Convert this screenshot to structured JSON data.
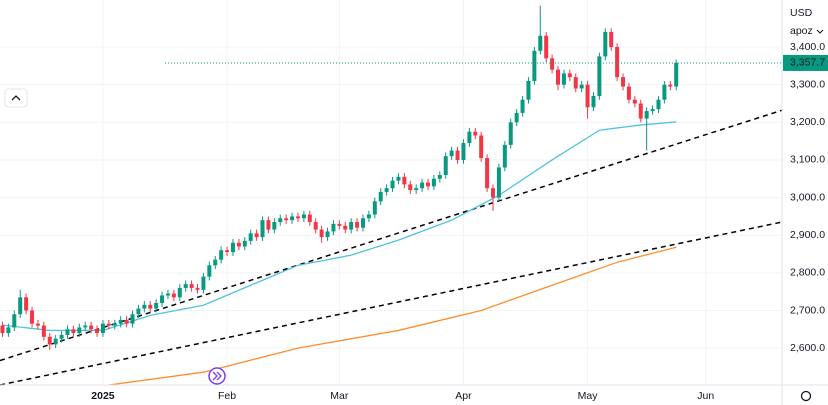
{
  "chart_data": {
    "type": "candlestick",
    "currency": "USD",
    "scale_label": "apoz",
    "xlim": [
      -0.42,
      131.9
    ],
    "ylim": [
      2502,
      3525
    ],
    "xticks": [
      {
        "value": 17,
        "label": "2025"
      },
      {
        "value": 38,
        "label": "Feb"
      },
      {
        "value": 57,
        "label": "Mar"
      },
      {
        "value": 78,
        "label": "Apr"
      },
      {
        "value": 99,
        "label": "May"
      },
      {
        "value": 119,
        "label": "Jun"
      }
    ],
    "yticks": [
      {
        "value": 3400,
        "label": "3,400.0"
      },
      {
        "value": 3300,
        "label": "3,300.0"
      },
      {
        "value": 3200,
        "label": "3,200.0"
      },
      {
        "value": 3100,
        "label": "3,100.0"
      },
      {
        "value": 3000,
        "label": "3,000.0"
      },
      {
        "value": 2900,
        "label": "2,900.0"
      },
      {
        "value": 2800,
        "label": "2,800.0"
      },
      {
        "value": 2700,
        "label": "2,700.0"
      },
      {
        "value": 2600,
        "label": "2,600.0"
      }
    ],
    "grid": true,
    "up_color": "#089981",
    "down_color": "#f23645",
    "current_price": {
      "value": 3357.7,
      "label": "3,357.7"
    },
    "candles": {
      "open": [
        2660,
        2640,
        2655,
        2690,
        2735,
        2700,
        2665,
        2660,
        2630,
        2610,
        2625,
        2635,
        2650,
        2640,
        2655,
        2660,
        2650,
        2640,
        2665,
        2660,
        2665,
        2675,
        2665,
        2690,
        2705,
        2715,
        2705,
        2720,
        2740,
        2745,
        2735,
        2760,
        2770,
        2760,
        2755,
        2790,
        2820,
        2835,
        2860,
        2855,
        2880,
        2870,
        2885,
        2905,
        2895,
        2940,
        2915,
        2935,
        2945,
        2940,
        2950,
        2945,
        2955,
        2935,
        2915,
        2895,
        2910,
        2930,
        2925,
        2915,
        2935,
        2920,
        2945,
        2955,
        2990,
        3015,
        3025,
        3045,
        3055,
        3035,
        3020,
        3025,
        3040,
        3030,
        3050,
        3060,
        3110,
        3125,
        3100,
        3145,
        3175,
        3165,
        3105,
        3025,
        3000,
        3080,
        3140,
        3200,
        3225,
        3260,
        3310,
        3390,
        3430,
        3370,
        3340,
        3300,
        3330,
        3320,
        3290,
        3300,
        3240,
        3270,
        3375,
        3440,
        3400,
        3320,
        3295,
        3260,
        3250,
        3210,
        3230,
        3235,
        3260,
        3300,
        3295
      ],
      "high": [
        2670,
        2665,
        2700,
        2755,
        2745,
        2710,
        2675,
        2670,
        2640,
        2635,
        2645,
        2660,
        2660,
        2665,
        2670,
        2670,
        2660,
        2675,
        2675,
        2675,
        2685,
        2685,
        2700,
        2715,
        2725,
        2725,
        2730,
        2750,
        2755,
        2755,
        2770,
        2780,
        2780,
        2770,
        2800,
        2830,
        2845,
        2870,
        2870,
        2890,
        2890,
        2895,
        2915,
        2915,
        2950,
        2950,
        2945,
        2955,
        2955,
        2960,
        2960,
        2965,
        2965,
        2945,
        2925,
        2920,
        2940,
        2940,
        2935,
        2945,
        2945,
        2955,
        2965,
        3000,
        3025,
        3035,
        3055,
        3065,
        3065,
        3045,
        3035,
        3050,
        3050,
        3060,
        3070,
        3120,
        3135,
        3135,
        3155,
        3185,
        3185,
        3175,
        3115,
        3035,
        3090,
        3150,
        3210,
        3235,
        3270,
        3320,
        3400,
        3510,
        3440,
        3380,
        3350,
        3340,
        3340,
        3330,
        3310,
        3310,
        3280,
        3385,
        3450,
        3450,
        3410,
        3330,
        3305,
        3270,
        3260,
        3240,
        3245,
        3270,
        3310,
        3310,
        3367
      ],
      "low": [
        2630,
        2630,
        2645,
        2680,
        2690,
        2655,
        2650,
        2620,
        2595,
        2600,
        2615,
        2625,
        2630,
        2630,
        2645,
        2640,
        2630,
        2630,
        2650,
        2650,
        2655,
        2655,
        2655,
        2680,
        2695,
        2695,
        2695,
        2710,
        2730,
        2725,
        2725,
        2750,
        2750,
        2745,
        2745,
        2780,
        2810,
        2825,
        2845,
        2845,
        2860,
        2860,
        2875,
        2885,
        2885,
        2905,
        2905,
        2925,
        2930,
        2930,
        2935,
        2935,
        2925,
        2905,
        2880,
        2885,
        2900,
        2915,
        2905,
        2905,
        2910,
        2910,
        2935,
        2945,
        2980,
        3005,
        3015,
        3035,
        3025,
        3010,
        3010,
        3015,
        3020,
        3020,
        3040,
        3050,
        3100,
        3090,
        3090,
        3135,
        3155,
        3095,
        3015,
        2965,
        2990,
        3070,
        3130,
        3190,
        3215,
        3250,
        3300,
        3380,
        3360,
        3330,
        3285,
        3290,
        3310,
        3280,
        3280,
        3210,
        3230,
        3260,
        3365,
        3390,
        3310,
        3285,
        3250,
        3240,
        3200,
        3125,
        3220,
        3225,
        3250,
        3285,
        3285
      ],
      "close": [
        2640,
        2655,
        2690,
        2735,
        2700,
        2665,
        2660,
        2630,
        2610,
        2625,
        2635,
        2650,
        2640,
        2655,
        2660,
        2650,
        2640,
        2665,
        2660,
        2665,
        2675,
        2665,
        2690,
        2705,
        2715,
        2705,
        2720,
        2740,
        2745,
        2735,
        2760,
        2770,
        2760,
        2755,
        2790,
        2820,
        2835,
        2860,
        2855,
        2880,
        2870,
        2885,
        2905,
        2895,
        2940,
        2915,
        2935,
        2945,
        2940,
        2950,
        2945,
        2955,
        2935,
        2915,
        2895,
        2910,
        2930,
        2925,
        2915,
        2935,
        2920,
        2945,
        2955,
        2990,
        3015,
        3025,
        3045,
        3055,
        3035,
        3020,
        3025,
        3040,
        3030,
        3050,
        3060,
        3110,
        3125,
        3100,
        3145,
        3175,
        3165,
        3105,
        3025,
        3000,
        3080,
        3140,
        3200,
        3225,
        3260,
        3310,
        3390,
        3430,
        3370,
        3340,
        3300,
        3330,
        3320,
        3290,
        3300,
        3240,
        3270,
        3375,
        3440,
        3400,
        3320,
        3295,
        3260,
        3250,
        3210,
        3230,
        3235,
        3260,
        3300,
        3295,
        3357.7
      ]
    },
    "lines": [
      {
        "color": "#4fc3e0",
        "x": [
          0,
          8,
          17,
          25,
          34,
          42,
          50,
          59,
          67,
          76,
          84,
          93,
          101,
          108,
          114
        ],
        "values": [
          2661,
          2647,
          2647,
          2687,
          2714,
          2767,
          2820,
          2847,
          2887,
          2940,
          3006,
          3100,
          3179,
          3193,
          3201
        ]
      },
      {
        "color": "#ff8c2a",
        "x": [
          18,
          34,
          50,
          67,
          81,
          93,
          104,
          114
        ],
        "values": [
          2502,
          2536,
          2600,
          2647,
          2700,
          2767,
          2828,
          2868
        ]
      }
    ],
    "trendlines": [
      {
        "x": [
          -0.42,
          131.9
        ],
        "y": [
          2567,
          3232
        ]
      },
      {
        "x": [
          -0.42,
          131.9
        ],
        "y": [
          2502,
          2935
        ]
      }
    ]
  }
}
